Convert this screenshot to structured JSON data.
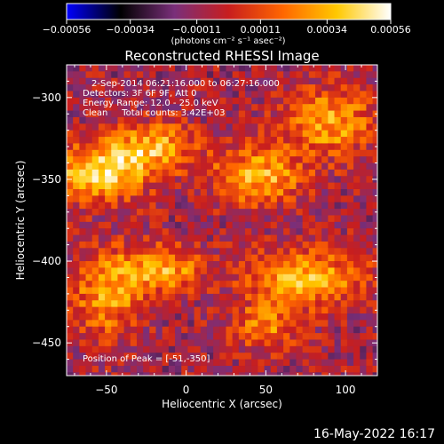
{
  "chart_data": {
    "type": "heatmap",
    "title": "Reconstructed RHESSI Image",
    "xlabel": "Heliocentric X (arcsec)",
    "ylabel": "Heliocentric Y (arcsec)",
    "xlim": [
      -75,
      120
    ],
    "ylim": [
      -470,
      -280
    ],
    "x_ticks": [
      -50,
      0,
      50,
      100
    ],
    "y_ticks": [
      -300,
      -350,
      -400,
      -450
    ],
    "x_tick_labels": [
      "−50",
      "0",
      "50",
      "100"
    ],
    "y_tick_labels": [
      "−300",
      "−350",
      "−400",
      "−450"
    ],
    "colorbar": {
      "min": -0.00056,
      "max": 0.00056,
      "ticks": [
        -0.00056,
        -0.00034,
        -0.00011,
        0.00011,
        0.00034,
        0.00056
      ],
      "tick_labels": [
        "−0.00056",
        "−0.00034",
        "−0.00011",
        "0.00011",
        "0.00034",
        "0.00056"
      ],
      "units_label": "(photons cm⁻² s⁻¹ asec⁻²)",
      "colormap": [
        "#0000ff",
        "#000000",
        "#7a2f7a",
        "#c81e1e",
        "#ff6600",
        "#ffc800",
        "#ffffff"
      ]
    },
    "annotations": [
      "2-Sep-2014 06:21:16.000 to 06:27:16.000",
      "Detectors: 3F 6F 9F, Att 0",
      "Energy Range: 12.0 - 25.0 keV",
      "Clean     Total counts: 3.42E+03"
    ],
    "peak_text": "Position of Peak = [-51,-350]",
    "peak_position": [
      -51,
      -350
    ],
    "pixel_size_arcsec": 4,
    "emission_regions": [
      {
        "x": -55,
        "y": -345,
        "sx": 22,
        "sy": 12,
        "amp": 1.0
      },
      {
        "x": -20,
        "y": -330,
        "sx": 18,
        "sy": 10,
        "amp": 0.75
      },
      {
        "x": 45,
        "y": -348,
        "sx": 20,
        "sy": 12,
        "amp": 0.8
      },
      {
        "x": 90,
        "y": -315,
        "sx": 20,
        "sy": 14,
        "amp": 0.75
      },
      {
        "x": -15,
        "y": -405,
        "sx": 18,
        "sy": 10,
        "amp": 0.75
      },
      {
        "x": -50,
        "y": -420,
        "sx": 15,
        "sy": 18,
        "amp": 0.7
      },
      {
        "x": 75,
        "y": -410,
        "sx": 25,
        "sy": 12,
        "amp": 0.8
      },
      {
        "x": 50,
        "y": -440,
        "sx": 15,
        "sy": 10,
        "amp": 0.6
      }
    ]
  },
  "footer": {
    "timestamp": "16-May-2022 16:17"
  }
}
